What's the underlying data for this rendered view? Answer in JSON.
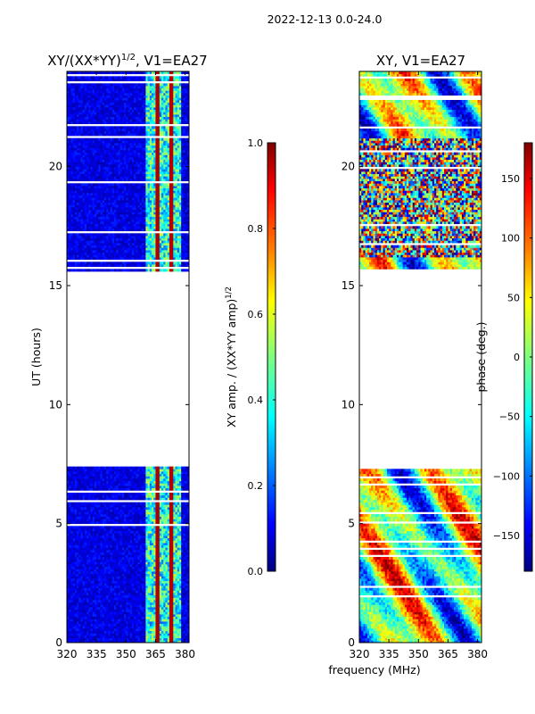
{
  "figure_title": "2022-12-13 0.0-24.0",
  "shared_xlabel": "frequency (MHz)",
  "chart_data": [
    {
      "type": "heatmap",
      "title": "XY/(XX*YY)",
      "title_sup": "1/2",
      "title_suffix": ", V1=EA27",
      "ylabel": "UT (hours)",
      "xlabel": "",
      "xlim": [
        320,
        382
      ],
      "ylim": [
        0,
        24
      ],
      "xticks": [
        320,
        335,
        350,
        365,
        380
      ],
      "yticks": [
        0,
        5,
        10,
        15,
        20
      ],
      "colorbar": {
        "label": "XY amp. / (XX*YY amp)",
        "label_sup": "1/2",
        "range": [
          0.0,
          1.0
        ],
        "ticks": [
          "0.0",
          "0.2",
          "0.4",
          "0.6",
          "0.8",
          "1.0"
        ],
        "colormap": "jet"
      },
      "data_time_ranges_hours": [
        [
          0,
          7.45
        ],
        [
          15.65,
          24
        ]
      ],
      "bright_frequency_band_mhz": [
        360,
        378
      ],
      "typical_value_outside_band": 0.1,
      "typical_value_in_band": 0.4
    },
    {
      "type": "heatmap",
      "title": "XY, V1=EA27",
      "ylabel": "",
      "xlabel": "frequency (MHz)",
      "xlim": [
        320,
        382
      ],
      "ylim": [
        0,
        24
      ],
      "xticks": [
        320,
        335,
        350,
        365,
        380
      ],
      "yticks": [
        0,
        5,
        10,
        15,
        20
      ],
      "colorbar": {
        "label": "phase (deg.)",
        "range": [
          -180,
          180
        ],
        "ticks": [
          "−150",
          "−100",
          "−50",
          "0",
          "50",
          "100",
          "150"
        ],
        "colormap": "jet"
      },
      "data_time_ranges_hours": [
        [
          0,
          7.35
        ],
        [
          15.75,
          24
        ]
      ],
      "noisy_phase_hours": [
        16.2,
        21.2
      ]
    }
  ],
  "colors": {
    "jet": [
      "#00007f",
      "#0000ff",
      "#007fff",
      "#00ffff",
      "#7fff7f",
      "#ffff00",
      "#ff7f00",
      "#ff0000",
      "#7f0000"
    ]
  }
}
